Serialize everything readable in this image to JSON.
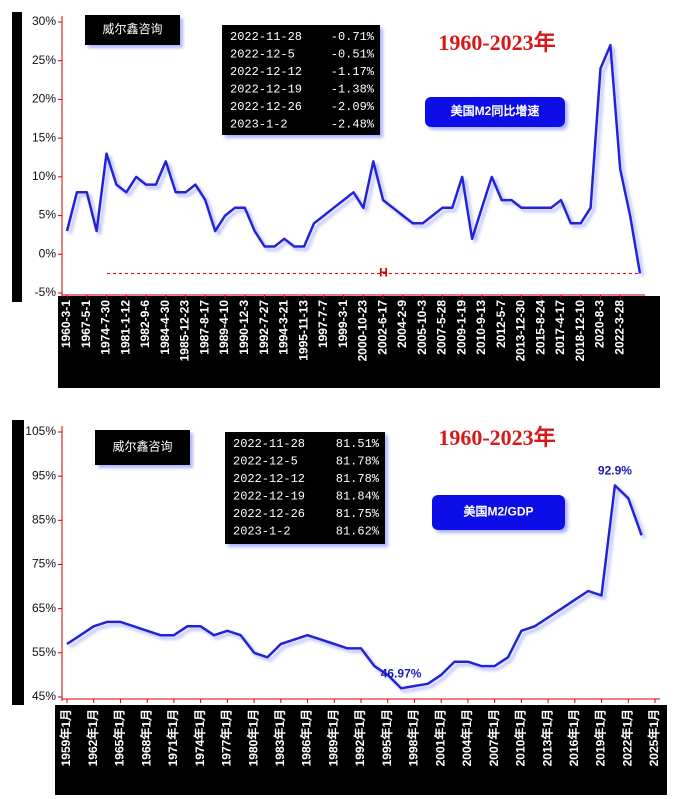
{
  "chart_data": [
    {
      "type": "line",
      "title": "1960-2023年",
      "subtitle": "美国M2同比增速",
      "source": "威尔鑫咨询",
      "table": [
        [
          "2022-11-28",
          "-0.71%"
        ],
        [
          "2022-12-5",
          "-0.51%"
        ],
        [
          "2022-12-12",
          "-1.17%"
        ],
        [
          "2022-12-19",
          "-1.38%"
        ],
        [
          "2022-12-26",
          "-2.09%"
        ],
        [
          "2023-1-2",
          "-2.48%"
        ]
      ],
      "categories": [
        "1960-3-1",
        null,
        "1967-5-1",
        null,
        "1974-7-30",
        null,
        "1981-1-12",
        null,
        "1982-9-6",
        null,
        "1984-4-30",
        null,
        "1985-12-23",
        null,
        "1987-8-17",
        null,
        "1989-4-10",
        null,
        "1990-12-3",
        null,
        "1992-7-27",
        null,
        "1994-3-21",
        null,
        "1995-11-13",
        null,
        "1997-7-7",
        null,
        "1999-3-1",
        null,
        "2000-10-23",
        null,
        "2002-6-17",
        null,
        "2004-2-9",
        null,
        "2005-10-3",
        null,
        "2007-5-28",
        null,
        "2009-1-19",
        null,
        "2010-9-13",
        null,
        "2012-5-7",
        null,
        "2013-12-30",
        null,
        "2015-8-24",
        null,
        "2017-4-17",
        null,
        "2018-12-10",
        null,
        "2020-8-3",
        null,
        "2022-3-28",
        null,
        null
      ],
      "values": [
        3,
        8,
        8,
        3,
        13,
        9,
        8,
        10,
        9,
        9,
        12,
        8,
        8,
        9,
        7,
        3,
        5,
        6,
        6,
        3,
        1,
        1,
        2,
        1,
        1,
        4,
        5,
        6,
        7,
        8,
        6,
        12,
        7,
        6,
        5,
        4,
        4,
        5,
        6,
        6,
        10,
        2,
        6,
        10,
        7,
        7,
        6,
        6,
        6,
        6,
        7,
        4,
        4,
        6,
        24,
        27,
        11,
        5,
        -2.48
      ],
      "color": "#2323d6",
      "ylim": [
        -5,
        30
      ],
      "yticks": [
        {
          "value": -5,
          "label": "-5%"
        },
        {
          "value": 0,
          "label": "0%"
        },
        {
          "value": 5,
          "label": "5%"
        },
        {
          "value": 10,
          "label": "10%"
        },
        {
          "value": 15,
          "label": "15%"
        },
        {
          "value": 20,
          "label": "20%"
        },
        {
          "value": 25,
          "label": "25%"
        },
        {
          "value": 30,
          "label": "30%"
        }
      ],
      "reference_line": {
        "value": -2.48,
        "label": "H"
      }
    },
    {
      "type": "line",
      "title": "1960-2023年",
      "subtitle": "美国M2/GDP",
      "source": "威尔鑫咨询",
      "table": [
        [
          "2022-11-28",
          "81.51%"
        ],
        [
          "2022-12-5",
          "81.78%"
        ],
        [
          "2022-12-12",
          "81.78%"
        ],
        [
          "2022-12-19",
          "81.84%"
        ],
        [
          "2022-12-26",
          "81.75%"
        ],
        [
          "2023-1-2",
          "81.62%"
        ]
      ],
      "categories": [
        "1959年1月",
        null,
        "1962年1月",
        null,
        "1965年1月",
        null,
        "1968年1月",
        null,
        "1971年1月",
        null,
        "1974年1月",
        null,
        "1977年1月",
        null,
        "1980年1月",
        null,
        "1983年1月",
        null,
        "1986年1月",
        null,
        "1989年1月",
        null,
        "1992年1月",
        null,
        "1995年1月",
        null,
        "1998年1月",
        null,
        "2001年1月",
        null,
        "2004年1月",
        null,
        "2007年1月",
        null,
        "2010年1月",
        null,
        "2013年1月",
        null,
        "2016年1月",
        null,
        "2019年1月",
        null,
        "2022年1月",
        null,
        "2025年1月"
      ],
      "values": [
        57,
        59,
        61,
        62,
        62,
        61,
        60,
        59,
        59,
        61,
        61,
        59,
        60,
        59,
        55,
        54,
        57,
        58,
        59,
        58,
        57,
        56,
        56,
        52,
        50,
        46.97,
        47.5,
        48,
        50,
        53,
        53,
        52,
        52,
        54,
        60,
        61,
        63,
        65,
        67,
        69,
        68,
        92.9,
        90,
        81.62,
        null
      ],
      "value_labels": [
        null,
        null,
        null,
        null,
        null,
        null,
        null,
        null,
        null,
        null,
        null,
        null,
        null,
        null,
        null,
        null,
        null,
        null,
        null,
        null,
        null,
        null,
        null,
        null,
        null,
        "46.97%",
        null,
        null,
        null,
        null,
        null,
        null,
        null,
        null,
        null,
        null,
        null,
        null,
        null,
        null,
        null,
        "92.9%",
        null,
        null,
        null
      ],
      "color": "#2323d6",
      "ylim": [
        45,
        105
      ],
      "yticks": [
        {
          "value": 45,
          "label": "45%"
        },
        {
          "value": 55,
          "label": "55%"
        },
        {
          "value": 65,
          "label": "65%"
        },
        {
          "value": 75,
          "label": "75%"
        },
        {
          "value": 85,
          "label": "85%"
        },
        {
          "value": 95,
          "label": "95%"
        },
        {
          "value": 105,
          "label": "105%"
        }
      ]
    }
  ]
}
